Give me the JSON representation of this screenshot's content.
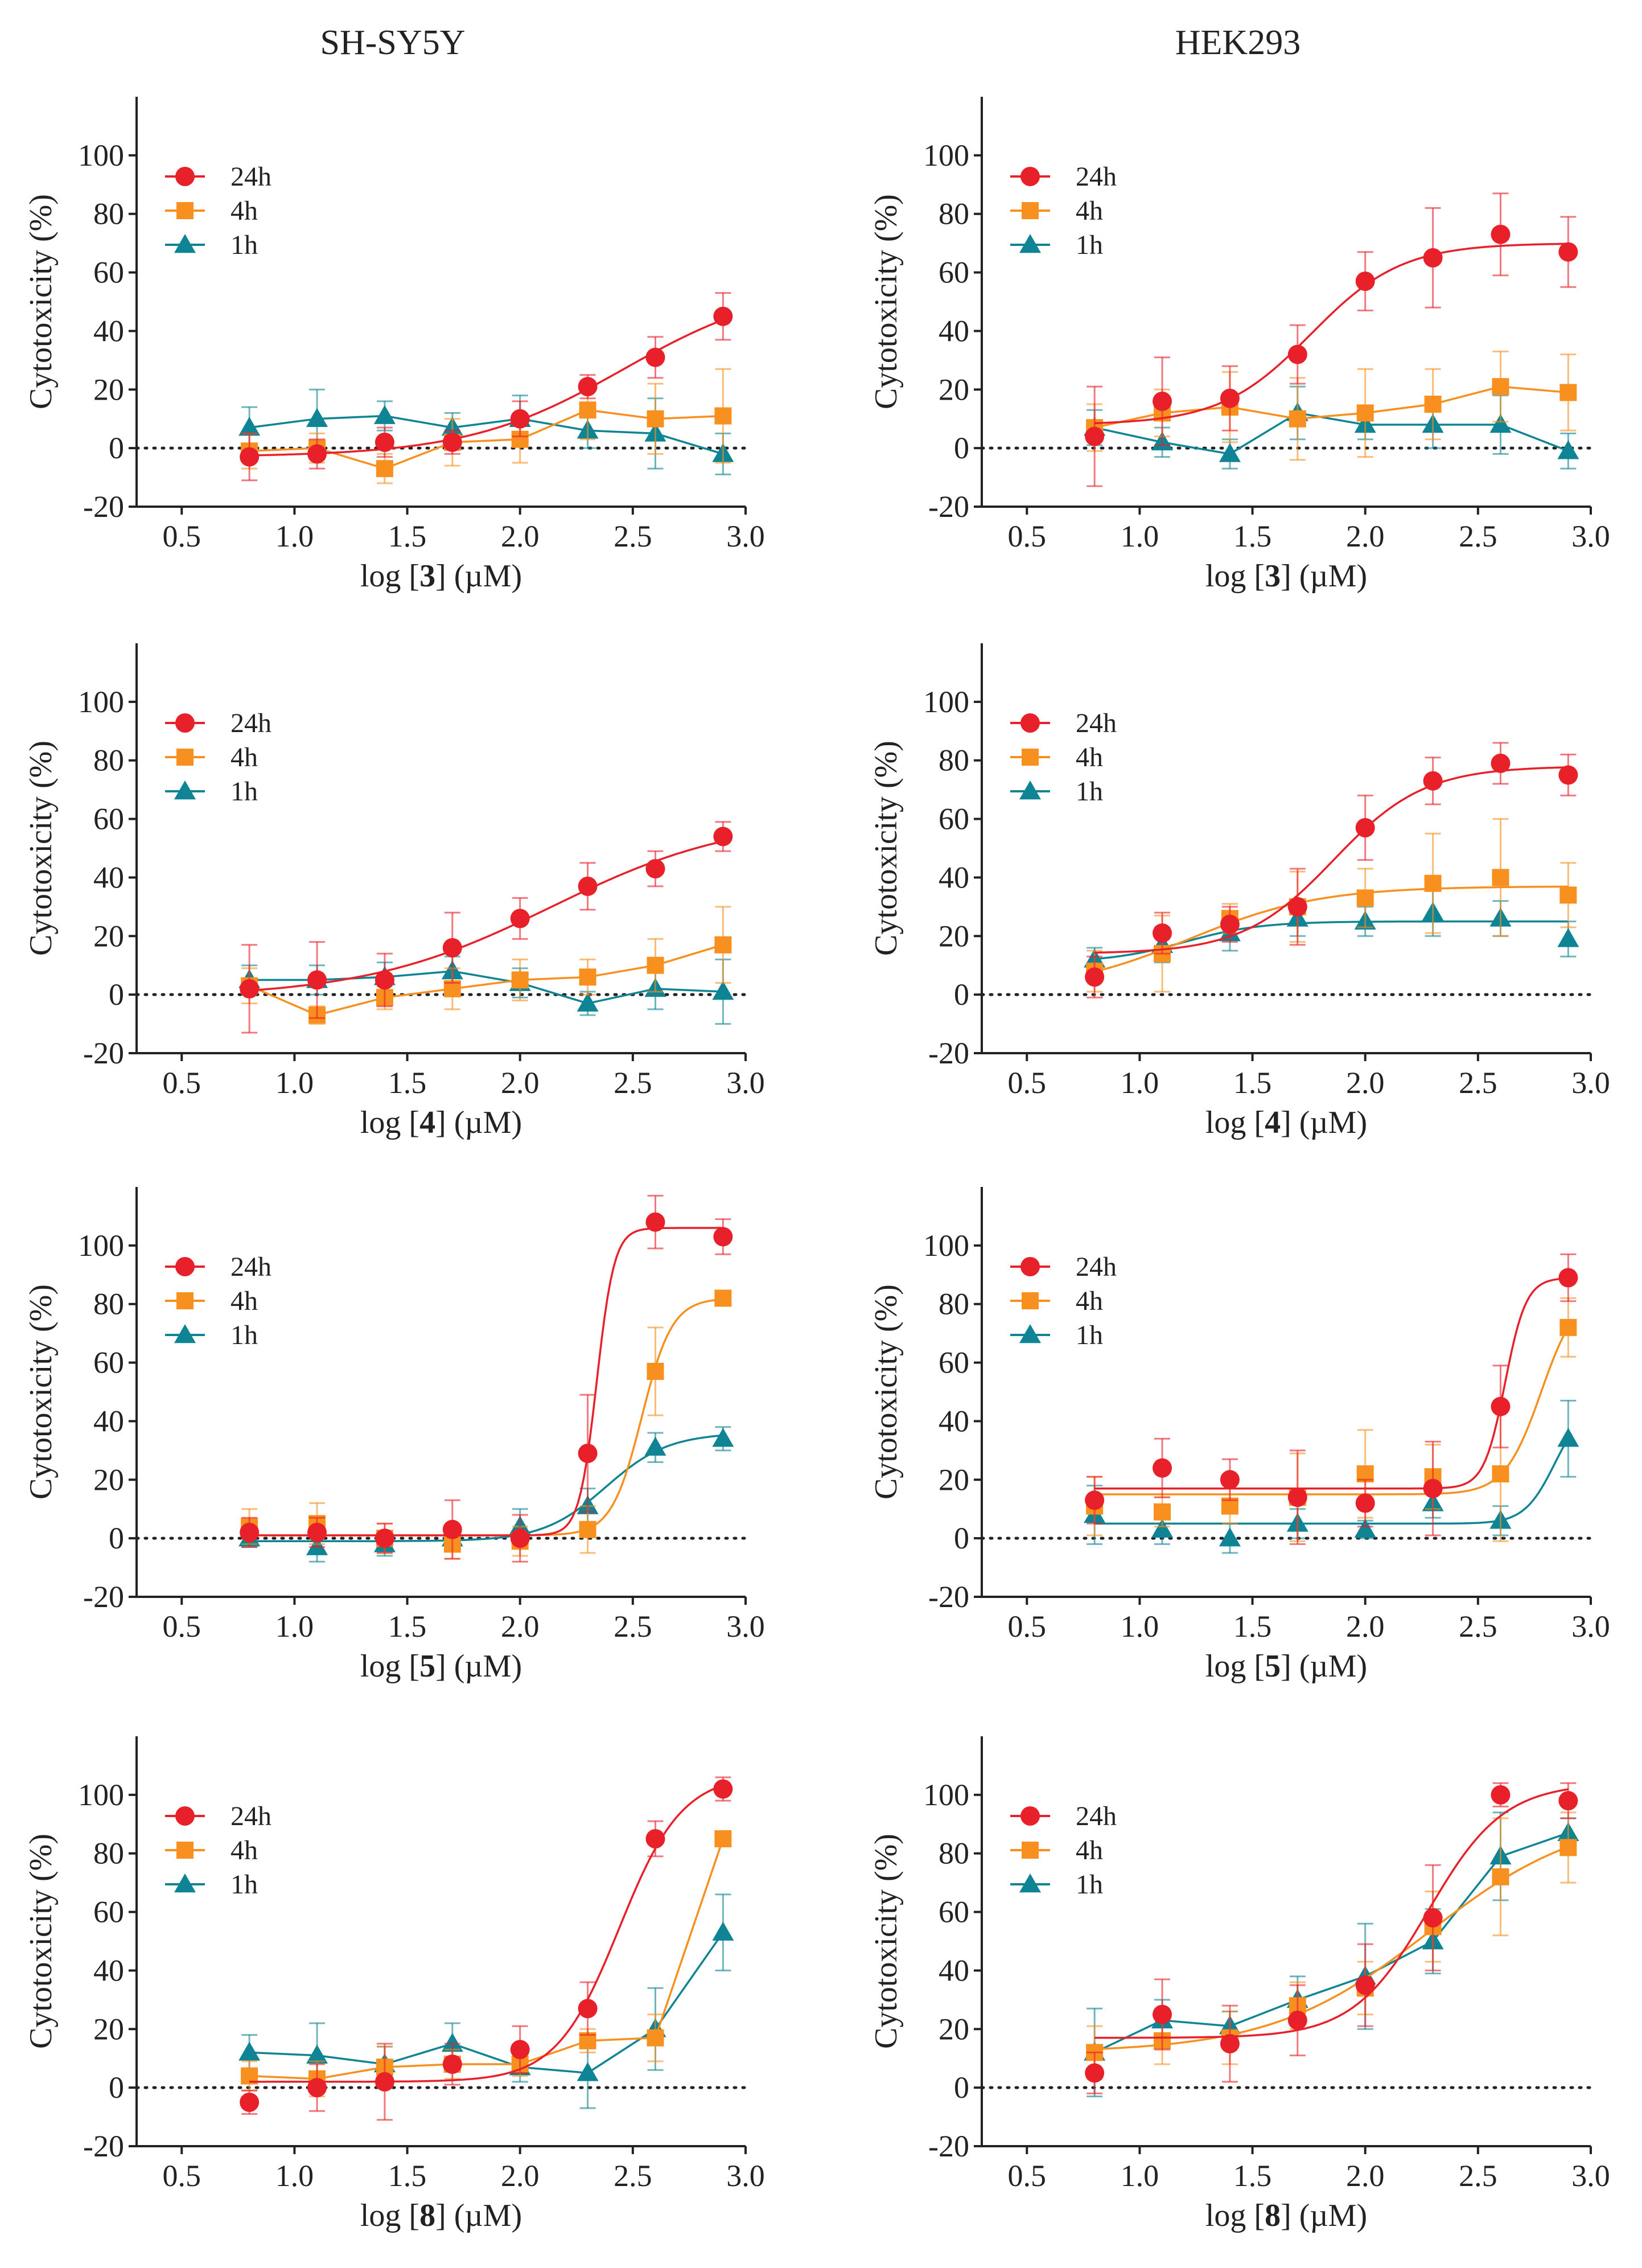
{
  "columns": [
    "SH-SY5Y",
    "HEK293"
  ],
  "legend": [
    "24h",
    "4h",
    "1h"
  ],
  "colors": {
    "24h": "#e8202a",
    "4h": "#f7901e",
    "1h": "#0e8494",
    "axis": "#222222"
  },
  "chart_data": [
    {
      "type": "scatter",
      "panel": "SH-SY5Y - compound 3",
      "cell_line": "SH-SY5Y",
      "compound": "3",
      "ylabel": "Cytotoxicity (%)",
      "xlabel": {
        "prefix": "log [",
        "bold": "3",
        "suffix": "] (µM)"
      },
      "xlim": [
        0.3,
        3.0
      ],
      "ylim": [
        -20,
        120
      ],
      "xticks": [
        0.5,
        1.0,
        1.5,
        2.0,
        2.5,
        3.0
      ],
      "yticks": [
        -20,
        0,
        20,
        40,
        60,
        80,
        100
      ],
      "x": [
        0.8,
        1.1,
        1.4,
        1.7,
        2.0,
        2.3,
        2.6,
        2.9
      ],
      "series": [
        {
          "name": "24h",
          "values": [
            -3,
            -2,
            2,
            2,
            10,
            21,
            31,
            45
          ],
          "errors": [
            8,
            5,
            5,
            4,
            6,
            4,
            7,
            8
          ],
          "fit": "sigmoid"
        },
        {
          "name": "4h",
          "values": [
            -1,
            0,
            -7,
            2,
            3,
            13,
            10,
            11
          ],
          "errors": [
            6,
            5,
            5,
            8,
            8,
            10,
            12,
            16
          ],
          "fit": "connect"
        },
        {
          "name": "1h",
          "values": [
            7,
            10,
            11,
            7,
            10,
            6,
            5,
            -2
          ],
          "errors": [
            7,
            10,
            5,
            5,
            8,
            6,
            12,
            7
          ],
          "fit": "connect"
        }
      ]
    },
    {
      "type": "scatter",
      "panel": "HEK293 - compound 3",
      "cell_line": "HEK293",
      "compound": "3",
      "ylabel": "Cytotoxicity (%)",
      "xlabel": {
        "prefix": "log [",
        "bold": "3",
        "suffix": "] (µM)"
      },
      "xlim": [
        0.3,
        3.0
      ],
      "ylim": [
        -20,
        120
      ],
      "xticks": [
        0.5,
        1.0,
        1.5,
        2.0,
        2.5,
        3.0
      ],
      "yticks": [
        -20,
        0,
        20,
        40,
        60,
        80,
        100
      ],
      "x": [
        0.8,
        1.1,
        1.4,
        1.7,
        2.0,
        2.3,
        2.6,
        2.9
      ],
      "series": [
        {
          "name": "24h",
          "values": [
            4,
            16,
            17,
            32,
            57,
            65,
            73,
            67
          ],
          "errors": [
            17,
            15,
            11,
            10,
            10,
            17,
            14,
            12
          ],
          "fit": "sigmoid"
        },
        {
          "name": "4h",
          "values": [
            7,
            12,
            14,
            10,
            12,
            15,
            21,
            19
          ],
          "errors": [
            8,
            8,
            12,
            14,
            15,
            12,
            12,
            13
          ],
          "fit": "connect"
        },
        {
          "name": "1h",
          "values": [
            7,
            2,
            -2,
            12,
            8,
            8,
            8,
            -1
          ],
          "errors": [
            6,
            5,
            5,
            9,
            5,
            8,
            10,
            6
          ],
          "fit": "connect"
        }
      ]
    },
    {
      "type": "scatter",
      "panel": "SH-SY5Y - compound 4",
      "cell_line": "SH-SY5Y",
      "compound": "4",
      "ylabel": "Cytotoxicity (%)",
      "xlabel": {
        "prefix": "log [",
        "bold": "4",
        "suffix": "] (µM)"
      },
      "xlim": [
        0.3,
        3.0
      ],
      "ylim": [
        -20,
        120
      ],
      "xticks": [
        0.5,
        1.0,
        1.5,
        2.0,
        2.5,
        3.0
      ],
      "yticks": [
        -20,
        0,
        20,
        40,
        60,
        80,
        100
      ],
      "x": [
        0.8,
        1.1,
        1.4,
        1.7,
        2.0,
        2.3,
        2.6,
        2.9
      ],
      "series": [
        {
          "name": "24h",
          "values": [
            2,
            5,
            5,
            16,
            26,
            37,
            43,
            54
          ],
          "errors": [
            15,
            13,
            9,
            12,
            7,
            8,
            6,
            5
          ],
          "fit": "sigmoid"
        },
        {
          "name": "4h",
          "values": [
            3,
            -7,
            -1,
            2,
            5,
            6,
            10,
            17
          ],
          "errors": [
            6,
            3,
            4,
            7,
            7,
            6,
            9,
            13
          ],
          "fit": "connect"
        },
        {
          "name": "1h",
          "values": [
            5,
            5,
            6,
            8,
            4,
            -3,
            2,
            1
          ],
          "errors": [
            5,
            5,
            5,
            5,
            5,
            4,
            7,
            11
          ],
          "fit": "connect"
        }
      ]
    },
    {
      "type": "scatter",
      "panel": "HEK293 - compound 4",
      "cell_line": "HEK293",
      "compound": "4",
      "ylabel": "Cytotoxicity (%)",
      "xlabel": {
        "prefix": "log [",
        "bold": "4",
        "suffix": "] (µM)"
      },
      "xlim": [
        0.3,
        3.0
      ],
      "ylim": [
        -20,
        120
      ],
      "xticks": [
        0.5,
        1.0,
        1.5,
        2.0,
        2.5,
        3.0
      ],
      "yticks": [
        -20,
        0,
        20,
        40,
        60,
        80,
        100
      ],
      "x": [
        0.8,
        1.1,
        1.4,
        1.7,
        2.0,
        2.3,
        2.6,
        2.9
      ],
      "series": [
        {
          "name": "24h",
          "values": [
            6,
            21,
            24,
            30,
            57,
            73,
            79,
            75
          ],
          "errors": [
            7,
            7,
            6,
            13,
            11,
            8,
            7,
            7
          ],
          "fit": "sigmoid"
        },
        {
          "name": "4h",
          "values": [
            8,
            14,
            26,
            30,
            33,
            38,
            40,
            34
          ],
          "errors": [
            7,
            13,
            5,
            12,
            10,
            17,
            20,
            11
          ],
          "fit": "sigmoid"
        },
        {
          "name": "1h",
          "values": [
            12,
            17,
            21,
            26,
            25,
            28,
            26,
            19
          ],
          "errors": [
            4,
            6,
            6,
            6,
            5,
            8,
            6,
            6
          ],
          "fit": "sigmoid"
        }
      ]
    },
    {
      "type": "scatter",
      "panel": "SH-SY5Y - compound 5",
      "cell_line": "SH-SY5Y",
      "compound": "5",
      "ylabel": "Cytotoxicity (%)",
      "xlabel": {
        "prefix": "log [",
        "bold": "5",
        "suffix": "] (µM)"
      },
      "xlim": [
        0.3,
        3.0
      ],
      "ylim": [
        -20,
        120
      ],
      "xticks": [
        0.5,
        1.0,
        1.5,
        2.0,
        2.5,
        3.0
      ],
      "yticks": [
        -20,
        0,
        20,
        40,
        60,
        80,
        100
      ],
      "x": [
        0.8,
        1.1,
        1.4,
        1.7,
        2.0,
        2.3,
        2.6,
        2.9
      ],
      "series": [
        {
          "name": "24h",
          "values": [
            2,
            2,
            0,
            3,
            0,
            29,
            108,
            103
          ],
          "errors": [
            5,
            5,
            5,
            10,
            8,
            20,
            9,
            6
          ],
          "fit": "sigmoid"
        },
        {
          "name": "4h",
          "values": [
            4,
            5,
            0,
            -2,
            -1,
            3,
            57,
            82
          ],
          "errors": [
            6,
            7,
            5,
            5,
            5,
            8,
            15,
            2
          ],
          "fit": "sigmoid"
        },
        {
          "name": "1h",
          "values": [
            0,
            -3,
            -2,
            0,
            4,
            11,
            31,
            34
          ],
          "errors": [
            3,
            5,
            4,
            4,
            6,
            6,
            5,
            4
          ],
          "fit": "sigmoid"
        }
      ]
    },
    {
      "type": "scatter",
      "panel": "HEK293 - compound 5",
      "cell_line": "HEK293",
      "compound": "5",
      "ylabel": "Cytotoxicity (%)",
      "xlabel": {
        "prefix": "log [",
        "bold": "5",
        "suffix": "] (µM)"
      },
      "xlim": [
        0.3,
        3.0
      ],
      "ylim": [
        -20,
        120
      ],
      "xticks": [
        0.5,
        1.0,
        1.5,
        2.0,
        2.5,
        3.0
      ],
      "yticks": [
        -20,
        0,
        20,
        40,
        60,
        80,
        100
      ],
      "x": [
        0.8,
        1.1,
        1.4,
        1.7,
        2.0,
        2.3,
        2.6,
        2.9
      ],
      "series": [
        {
          "name": "24h",
          "values": [
            13,
            24,
            20,
            14,
            12,
            17,
            45,
            89
          ],
          "errors": [
            8,
            10,
            7,
            16,
            8,
            16,
            14,
            8
          ],
          "fit": "sigmoid"
        },
        {
          "name": "4h",
          "values": [
            11,
            9,
            11,
            14,
            22,
            21,
            22,
            72
          ],
          "errors": [
            10,
            5,
            6,
            15,
            15,
            11,
            23,
            10
          ],
          "fit": "sigmoid"
        },
        {
          "name": "1h",
          "values": [
            8,
            3,
            0,
            5,
            3,
            12,
            6,
            34
          ],
          "errors": [
            10,
            5,
            5,
            5,
            3,
            5,
            5,
            13
          ],
          "fit": "sigmoid"
        }
      ]
    },
    {
      "type": "scatter",
      "panel": "SH-SY5Y - compound 8",
      "cell_line": "SH-SY5Y",
      "compound": "8",
      "ylabel": "Cytotoxicity (%)",
      "xlabel": {
        "prefix": "log [",
        "bold": "8",
        "suffix": "] (µM)"
      },
      "xlim": [
        0.3,
        3.0
      ],
      "ylim": [
        -20,
        120
      ],
      "xticks": [
        0.5,
        1.0,
        1.5,
        2.0,
        2.5,
        3.0
      ],
      "yticks": [
        -20,
        0,
        20,
        40,
        60,
        80,
        100
      ],
      "x": [
        0.8,
        1.1,
        1.4,
        1.7,
        2.0,
        2.3,
        2.6,
        2.9
      ],
      "series": [
        {
          "name": "24h",
          "values": [
            -5,
            0,
            2,
            8,
            13,
            27,
            85,
            102
          ],
          "errors": [
            4,
            8,
            13,
            7,
            8,
            9,
            6,
            4
          ],
          "fit": "sigmoid"
        },
        {
          "name": "4h",
          "values": [
            4,
            3,
            7,
            8,
            8,
            16,
            17,
            85
          ],
          "errors": [
            5,
            6,
            7,
            5,
            4,
            4,
            8,
            2
          ],
          "fit": "connect"
        },
        {
          "name": "1h",
          "values": [
            12,
            11,
            8,
            15,
            7,
            5,
            20,
            53
          ],
          "errors": [
            6,
            11,
            6,
            7,
            5,
            12,
            14,
            13
          ],
          "fit": "connect"
        }
      ]
    },
    {
      "type": "scatter",
      "panel": "HEK293 - compound 8",
      "cell_line": "HEK293",
      "compound": "8",
      "ylabel": "Cytotoxicity (%)",
      "xlabel": {
        "prefix": "log [",
        "bold": "8",
        "suffix": "] (µM)"
      },
      "xlim": [
        0.3,
        3.0
      ],
      "ylim": [
        -20,
        120
      ],
      "xticks": [
        0.5,
        1.0,
        1.5,
        2.0,
        2.5,
        3.0
      ],
      "yticks": [
        -20,
        0,
        20,
        40,
        60,
        80,
        100
      ],
      "x": [
        0.8,
        1.1,
        1.4,
        1.7,
        2.0,
        2.3,
        2.6,
        2.9
      ],
      "series": [
        {
          "name": "24h",
          "values": [
            5,
            25,
            15,
            23,
            35,
            58,
            100,
            98
          ],
          "errors": [
            7,
            12,
            13,
            12,
            14,
            18,
            4,
            6
          ],
          "fit": "sigmoid"
        },
        {
          "name": "4h",
          "values": [
            12,
            16,
            17,
            28,
            34,
            55,
            72,
            82
          ],
          "errors": [
            9,
            8,
            9,
            8,
            9,
            12,
            20,
            12
          ],
          "fit": "sigmoid"
        },
        {
          "name": "1h",
          "values": [
            12,
            23,
            21,
            30,
            38,
            50,
            79,
            87
          ],
          "errors": [
            15,
            7,
            5,
            8,
            18,
            11,
            15,
            5
          ],
          "fit": "connect"
        }
      ]
    }
  ]
}
